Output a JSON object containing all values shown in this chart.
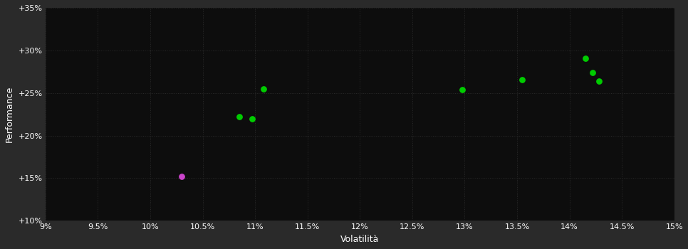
{
  "background_color": "#2a2a2a",
  "plot_bg_color": "#0d0d0d",
  "grid_color": "#2a2a2a",
  "text_color": "#ffffff",
  "xlabel": "Volatilità",
  "ylabel": "Performance",
  "xlim": [
    0.09,
    0.15
  ],
  "ylim": [
    0.1,
    0.35
  ],
  "xticks": [
    0.09,
    0.095,
    0.1,
    0.105,
    0.11,
    0.115,
    0.12,
    0.125,
    0.13,
    0.135,
    0.14,
    0.145,
    0.15
  ],
  "yticks": [
    0.1,
    0.15,
    0.2,
    0.25,
    0.3,
    0.35
  ],
  "green_points": [
    [
      0.1085,
      0.222
    ],
    [
      0.1097,
      0.22
    ],
    [
      0.1108,
      0.255
    ],
    [
      0.1298,
      0.254
    ],
    [
      0.1355,
      0.266
    ],
    [
      0.1415,
      0.291
    ],
    [
      0.1422,
      0.274
    ],
    [
      0.1428,
      0.264
    ]
  ],
  "magenta_points": [
    [
      0.103,
      0.152
    ]
  ],
  "point_color_green": "#00cc00",
  "point_color_magenta": "#cc44cc",
  "marker_size": 28
}
